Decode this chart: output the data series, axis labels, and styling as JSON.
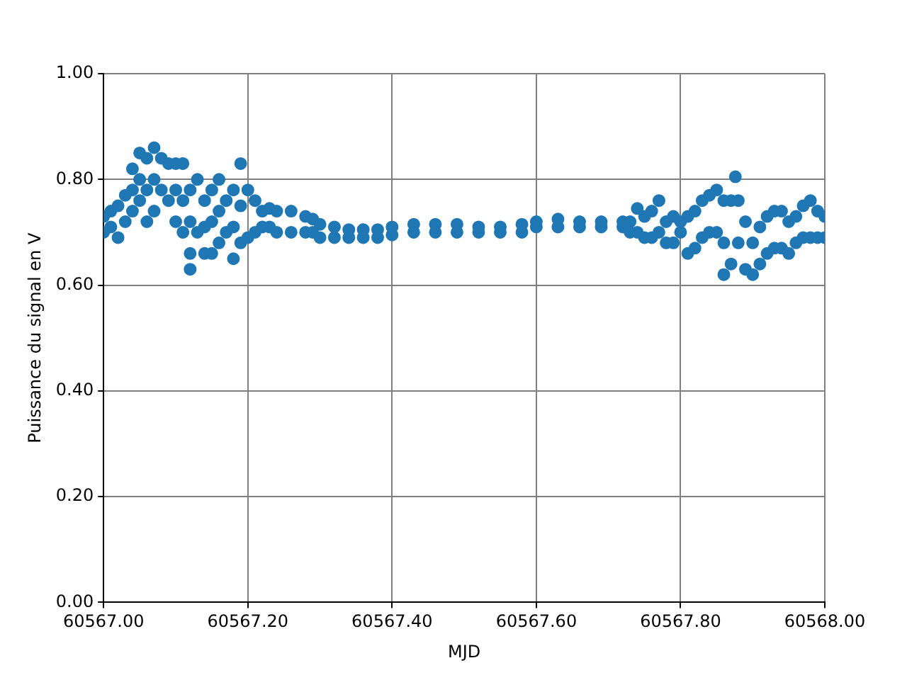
{
  "chart_data": {
    "type": "scatter",
    "xlabel": "MJD",
    "ylabel": "Puissance du signal en V",
    "grid": true,
    "legend": false,
    "marker": "circle",
    "xlim": [
      60567,
      60568
    ],
    "ylim": [
      0,
      1
    ],
    "xticks": [
      {
        "value": 60567,
        "label": "60567.00"
      },
      {
        "value": 60567.2,
        "label": "60567.20"
      },
      {
        "value": 60567.4,
        "label": "60567.40"
      },
      {
        "value": 60567.6,
        "label": "60567.60"
      },
      {
        "value": 60567.8,
        "label": "60567.80"
      },
      {
        "value": 60568,
        "label": "60568.00"
      }
    ],
    "yticks": [
      {
        "value": 0,
        "label": "0.00"
      },
      {
        "value": 0.2,
        "label": "0.20"
      },
      {
        "value": 0.4,
        "label": "0.40"
      },
      {
        "value": 0.6,
        "label": "0.60"
      },
      {
        "value": 0.8,
        "label": "0.80"
      },
      {
        "value": 1,
        "label": "1.00"
      }
    ],
    "series": [
      {
        "color": "#1f77b4",
        "x": [
          60567.0,
          60567.0,
          60567.01,
          60567.01,
          60567.02,
          60567.02,
          60567.03,
          60567.03,
          60567.04,
          60567.04,
          60567.04,
          60567.05,
          60567.05,
          60567.05,
          60567.06,
          60567.06,
          60567.06,
          60567.07,
          60567.07,
          60567.07,
          60567.08,
          60567.08,
          60567.09,
          60567.09,
          60567.1,
          60567.1,
          60567.1,
          60567.11,
          60567.11,
          60567.11,
          60567.12,
          60567.12,
          60567.12,
          60567.12,
          60567.13,
          60567.13,
          60567.14,
          60567.14,
          60567.14,
          60567.15,
          60567.15,
          60567.15,
          60567.16,
          60567.16,
          60567.16,
          60567.17,
          60567.17,
          60567.18,
          60567.18,
          60567.18,
          60567.19,
          60567.19,
          60567.19,
          60567.2,
          60567.2,
          60567.21,
          60567.21,
          60567.22,
          60567.22,
          60567.23,
          60567.23,
          60567.24,
          60567.24,
          60567.26,
          60567.26,
          60567.28,
          60567.28,
          60567.29,
          60567.29,
          60567.3,
          60567.3,
          60567.32,
          60567.32,
          60567.34,
          60567.34,
          60567.36,
          60567.36,
          60567.38,
          60567.38,
          60567.4,
          60567.4,
          60567.43,
          60567.43,
          60567.46,
          60567.46,
          60567.49,
          60567.49,
          60567.52,
          60567.52,
          60567.55,
          60567.55,
          60567.58,
          60567.58,
          60567.6,
          60567.6,
          60567.63,
          60567.63,
          60567.66,
          60567.66,
          60567.69,
          60567.69,
          60567.72,
          60567.72,
          60567.73,
          60567.73,
          60567.74,
          60567.74,
          60567.75,
          60567.75,
          60567.76,
          60567.76,
          60567.77,
          60567.77,
          60567.78,
          60567.78,
          60567.79,
          60567.79,
          60567.8,
          60567.8,
          60567.81,
          60567.81,
          60567.82,
          60567.82,
          60567.83,
          60567.83,
          60567.84,
          60567.84,
          60567.85,
          60567.85,
          60567.86,
          60567.86,
          60567.86,
          60567.87,
          60567.87,
          60567.876,
          60567.88,
          60567.88,
          60567.89,
          60567.89,
          60567.9,
          60567.9,
          60567.91,
          60567.91,
          60567.92,
          60567.92,
          60567.93,
          60567.93,
          60567.94,
          60567.94,
          60567.95,
          60567.95,
          60567.96,
          60567.96,
          60567.97,
          60567.97,
          60567.98,
          60567.98,
          60567.99,
          60567.99,
          60568.0,
          60568.0
        ],
        "values": [
          0.7,
          0.73,
          0.71,
          0.74,
          0.69,
          0.75,
          0.72,
          0.77,
          0.74,
          0.78,
          0.82,
          0.76,
          0.8,
          0.85,
          0.72,
          0.78,
          0.84,
          0.74,
          0.8,
          0.86,
          0.78,
          0.84,
          0.76,
          0.83,
          0.72,
          0.78,
          0.83,
          0.7,
          0.76,
          0.83,
          0.63,
          0.66,
          0.72,
          0.78,
          0.7,
          0.8,
          0.66,
          0.71,
          0.76,
          0.66,
          0.72,
          0.78,
          0.68,
          0.74,
          0.8,
          0.7,
          0.76,
          0.65,
          0.71,
          0.78,
          0.68,
          0.75,
          0.83,
          0.69,
          0.78,
          0.7,
          0.76,
          0.71,
          0.74,
          0.71,
          0.745,
          0.7,
          0.74,
          0.7,
          0.74,
          0.7,
          0.73,
          0.7,
          0.725,
          0.69,
          0.715,
          0.69,
          0.71,
          0.69,
          0.705,
          0.69,
          0.705,
          0.69,
          0.705,
          0.695,
          0.71,
          0.7,
          0.715,
          0.7,
          0.715,
          0.7,
          0.715,
          0.7,
          0.71,
          0.7,
          0.71,
          0.7,
          0.715,
          0.71,
          0.72,
          0.71,
          0.725,
          0.71,
          0.72,
          0.71,
          0.72,
          0.71,
          0.72,
          0.7,
          0.72,
          0.7,
          0.745,
          0.69,
          0.73,
          0.69,
          0.74,
          0.7,
          0.76,
          0.68,
          0.72,
          0.68,
          0.73,
          0.7,
          0.72,
          0.66,
          0.73,
          0.67,
          0.74,
          0.69,
          0.76,
          0.7,
          0.77,
          0.7,
          0.78,
          0.62,
          0.68,
          0.76,
          0.64,
          0.76,
          0.805,
          0.68,
          0.76,
          0.63,
          0.72,
          0.62,
          0.68,
          0.64,
          0.71,
          0.66,
          0.73,
          0.67,
          0.74,
          0.67,
          0.74,
          0.66,
          0.72,
          0.68,
          0.73,
          0.69,
          0.75,
          0.69,
          0.76,
          0.69,
          0.74,
          0.69,
          0.73
        ]
      }
    ]
  }
}
